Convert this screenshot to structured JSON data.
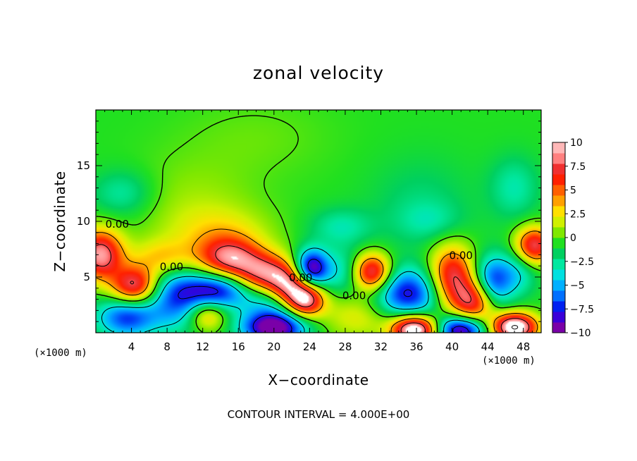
{
  "chart_data": {
    "type": "heatmap",
    "title": "zonal velocity",
    "xlabel": "X−coordinate",
    "ylabel": "Z−coordinate",
    "x_unit_left": "(×1000 m)",
    "x_unit_right": "(×1000 m)",
    "footer": "CONTOUR INTERVAL = 4.000E+00",
    "xlim": [
      0,
      50
    ],
    "ylim": [
      0,
      20
    ],
    "x_ticks": [
      4,
      8,
      12,
      16,
      20,
      24,
      28,
      32,
      36,
      40,
      44,
      48
    ],
    "x_tick_labels": [
      "4",
      "8",
      "12",
      "16",
      "20",
      "24",
      "28",
      "32",
      "36",
      "40",
      "44",
      "48"
    ],
    "y_ticks": [
      5,
      10,
      15
    ],
    "y_tick_labels": [
      "5",
      "10",
      "15"
    ],
    "colorbar": {
      "min": -10,
      "max": 10,
      "ticks": [
        10,
        7.5,
        5,
        2.5,
        0,
        -2.5,
        -5,
        -7.5,
        -10
      ],
      "tick_labels": [
        "10",
        "7.5",
        "5",
        "2.5",
        "0",
        "−2.5",
        "−5",
        "−7.5",
        "−10"
      ],
      "colors": [
        "#7a00a8",
        "#3a00d8",
        "#0020f0",
        "#0070ff",
        "#00b0ff",
        "#00e0e0",
        "#00e8a0",
        "#00d060",
        "#20e020",
        "#80e800",
        "#d0f000",
        "#ffe000",
        "#ffa000",
        "#ff6000",
        "#ff2000",
        "#f03030",
        "#ff8080",
        "#ffb8b8"
      ]
    },
    "contour_labels": [
      {
        "text": "0.00",
        "x": 2.4,
        "y": 9.7
      },
      {
        "text": "0.00",
        "x": 8.5,
        "y": 5.9
      },
      {
        "text": "0.00",
        "x": 23.0,
        "y": 4.9
      },
      {
        "text": "0.00",
        "x": 29.0,
        "y": 3.3
      },
      {
        "text": "0.00",
        "x": 41.0,
        "y": 6.9
      }
    ],
    "field_features": [
      {
        "x": 0.5,
        "y": 7.0,
        "v": 10,
        "sx": 1.8,
        "sy": 1.6
      },
      {
        "x": 4.3,
        "y": 4.2,
        "v": 9,
        "sx": 1.8,
        "sy": 1.2
      },
      {
        "x": 3.5,
        "y": 1.4,
        "v": -7,
        "sx": 2.4,
        "sy": 1.3
      },
      {
        "x": 9.0,
        "y": 3.2,
        "v": -6,
        "sx": 2.2,
        "sy": 2.0
      },
      {
        "x": 7.5,
        "y": 6.6,
        "v": 4,
        "sx": 2.5,
        "sy": 1.2
      },
      {
        "x": 12.5,
        "y": 1.6,
        "v": 5,
        "sx": 1.5,
        "sy": 1.0
      },
      {
        "x": 13.5,
        "y": 3.8,
        "v": -8,
        "sx": 2.5,
        "sy": 1.2
      },
      {
        "x": 15.0,
        "y": 6.6,
        "v": 8,
        "sx": 2.4,
        "sy": 1.3
      },
      {
        "x": 19.0,
        "y": 5.2,
        "v": 9,
        "sx": 2.2,
        "sy": 1.3
      },
      {
        "x": 19.5,
        "y": 2.8,
        "v": -4,
        "sx": 2.5,
        "sy": 1.5
      },
      {
        "x": 20.0,
        "y": 0.4,
        "v": -10,
        "sx": 2.5,
        "sy": 1.0
      },
      {
        "x": 23.5,
        "y": 3.0,
        "v": 11,
        "sx": 1.5,
        "sy": 1.1
      },
      {
        "x": 21.5,
        "y": 4.2,
        "v": 7,
        "sx": 1.5,
        "sy": 1.2
      },
      {
        "x": 24.2,
        "y": 5.8,
        "v": -9,
        "sx": 1.3,
        "sy": 1.2
      },
      {
        "x": 14.0,
        "y": 8.6,
        "v": 3,
        "sx": 4.0,
        "sy": 1.8
      },
      {
        "x": 11.0,
        "y": 11.5,
        "v": 1.5,
        "sx": 5.0,
        "sy": 3.0
      },
      {
        "x": 27.5,
        "y": 5.5,
        "v": -3,
        "sx": 2.0,
        "sy": 1.5
      },
      {
        "x": 31.0,
        "y": 5.4,
        "v": 10,
        "sx": 1.5,
        "sy": 1.2
      },
      {
        "x": 29.5,
        "y": 1.5,
        "v": 3,
        "sx": 3.0,
        "sy": 1.5
      },
      {
        "x": 35.0,
        "y": 3.5,
        "v": -8,
        "sx": 2.8,
        "sy": 1.6
      },
      {
        "x": 35.8,
        "y": 0.3,
        "v": 13,
        "sx": 1.8,
        "sy": 0.9
      },
      {
        "x": 40.0,
        "y": 5.0,
        "v": 9,
        "sx": 1.8,
        "sy": 2.0
      },
      {
        "x": 42.5,
        "y": 2.8,
        "v": 8,
        "sx": 1.6,
        "sy": 1.4
      },
      {
        "x": 41.0,
        "y": 0.3,
        "v": -10,
        "sx": 2.0,
        "sy": 0.9
      },
      {
        "x": 44.5,
        "y": 4.6,
        "v": -7,
        "sx": 1.6,
        "sy": 1.6
      },
      {
        "x": 47.0,
        "y": 0.5,
        "v": 13,
        "sx": 1.8,
        "sy": 0.9
      },
      {
        "x": 49.2,
        "y": 7.8,
        "v": 9,
        "sx": 1.5,
        "sy": 1.2
      },
      {
        "x": 47.5,
        "y": 5.5,
        "v": -3,
        "sx": 1.5,
        "sy": 1.5
      },
      {
        "x": 37.5,
        "y": 10.0,
        "v": -1.5,
        "sx": 2.5,
        "sy": 1.2
      },
      {
        "x": 3.0,
        "y": 12.5,
        "v": -2.5,
        "sx": 2.5,
        "sy": 1.5
      },
      {
        "x": 27.5,
        "y": 9.5,
        "v": -2.5,
        "sx": 2.5,
        "sy": 1.2
      },
      {
        "x": 47.0,
        "y": 13.0,
        "v": -2.5,
        "sx": 2.0,
        "sy": 2.0
      },
      {
        "x": 36.5,
        "y": 11.5,
        "v": -1.5,
        "sx": 4.0,
        "sy": 3.0
      },
      {
        "x": 18.0,
        "y": 17.5,
        "v": 0.8,
        "sx": 6.0,
        "sy": 2.5
      }
    ],
    "field_background": -0.6
  }
}
